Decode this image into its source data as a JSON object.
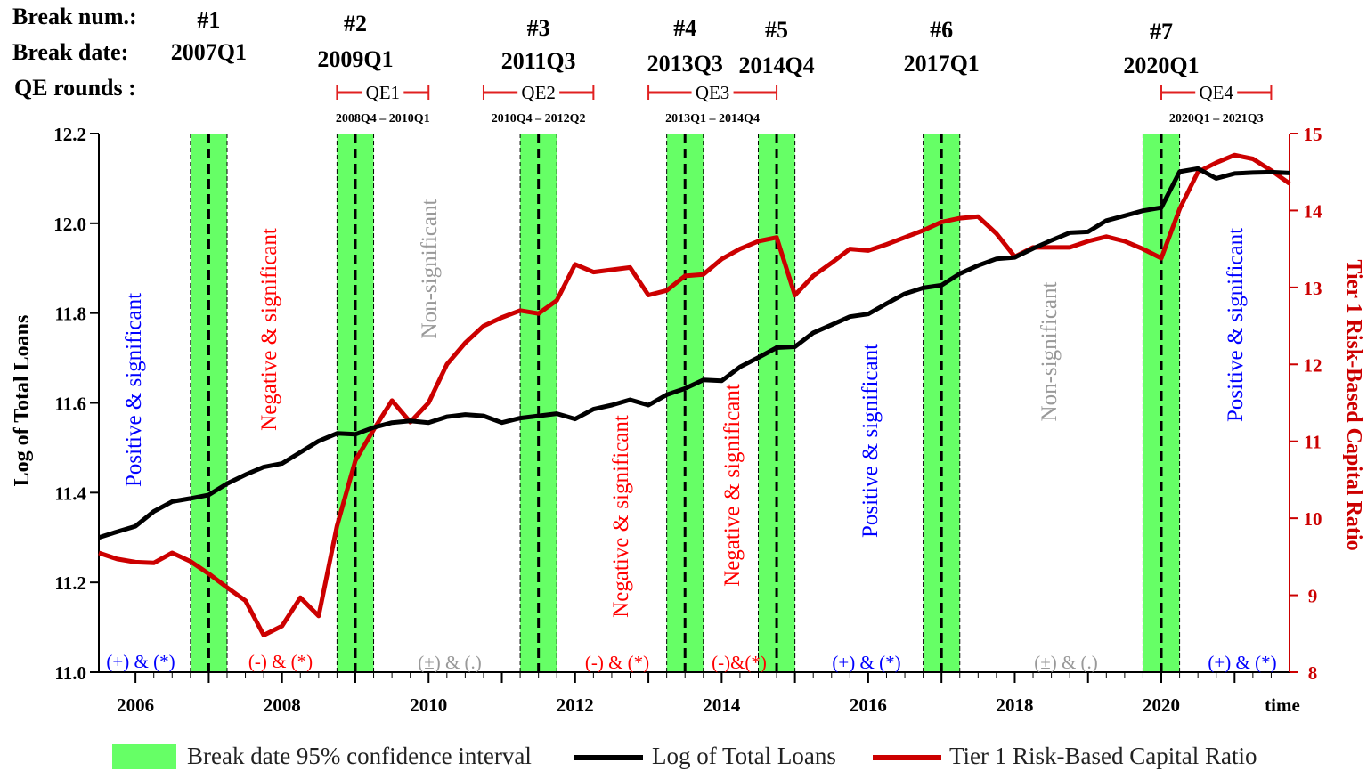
{
  "header": {
    "break_num_label": "Break num.:",
    "break_date_label": "Break date:",
    "qe_label": "QE rounds :"
  },
  "breaks": [
    {
      "num": "#1",
      "date": "2007Q1",
      "t": 2007.0
    },
    {
      "num": "#2",
      "date": "2009Q1",
      "t": 2009.0
    },
    {
      "num": "#3",
      "date": "2011Q3",
      "t": 2011.5
    },
    {
      "num": "#4",
      "date": "2013Q3",
      "t": 2013.5
    },
    {
      "num": "#5",
      "date": "2014Q4",
      "t": 2014.75
    },
    {
      "num": "#6",
      "date": "2017Q1",
      "t": 2017.0
    },
    {
      "num": "#7",
      "date": "2020Q1",
      "t": 2020.0
    }
  ],
  "qe_rounds": [
    {
      "label": "QE1",
      "range": "2008Q4 – 2010Q1",
      "start": 2008.75,
      "end": 2010.0
    },
    {
      "label": "QE2",
      "range": "2010Q4 – 2012Q2",
      "start": 2010.75,
      "end": 2012.25
    },
    {
      "label": "QE3",
      "range": "2013Q1 – 2014Q4",
      "start": 2013.0,
      "end": 2014.75
    },
    {
      "label": "QE4",
      "range": "2020Q1 – 2021Q3",
      "start": 2020.0,
      "end": 2021.5
    }
  ],
  "regimes": [
    {
      "label": "Positive & significant",
      "sig": "(+) & (*)",
      "color": "#0000ff",
      "sig_color": "#0000ff"
    },
    {
      "label": "Negative & significant",
      "sig": "(-) & (*)",
      "color": "#ff0000",
      "sig_color": "#ff0000"
    },
    {
      "label": "Non-significant",
      "sig": "(±) & (.)",
      "color": "#999999",
      "sig_color": "#999999"
    },
    {
      "label": "Negative & significant",
      "sig": "(-) & (*)",
      "color": "#ff0000",
      "sig_color": "#ff0000"
    },
    {
      "label": "Negative & significant",
      "sig": "(-)&(*)",
      "color": "#ff0000",
      "sig_color": "#ff0000"
    },
    {
      "label": "Positive & significant",
      "sig": "(+) & (*)",
      "color": "#0000ff",
      "sig_color": "#0000ff"
    },
    {
      "label": "Non-significant",
      "sig": "(±) & (.)",
      "color": "#999999",
      "sig_color": "#999999"
    },
    {
      "label": "Positive & significant",
      "sig": "(+) & (*)",
      "color": "#0000ff",
      "sig_color": "#0000ff"
    }
  ],
  "legend": [
    {
      "label": "Break date 95% confidence interval",
      "color": "#66ff66",
      "kind": "box"
    },
    {
      "label": "Log of Total Loans",
      "color": "#000000",
      "kind": "line"
    },
    {
      "label": "Tier 1 Risk-Based Capital Ratio",
      "color": "#cc0000",
      "kind": "line"
    }
  ],
  "colors": {
    "ci_fill": "#66ff66",
    "loans": "#000000",
    "tier1": "#cc0000"
  },
  "chart_data": {
    "type": "line",
    "xlabel": "time",
    "ylabel_left": "Log of Total Loans",
    "ylabel_right": "Tier 1 Risk-Based Capital Ratio",
    "xlim": [
      2005.5,
      2021.75
    ],
    "ylim_left": [
      11.0,
      12.2
    ],
    "ylim_right": [
      8,
      15
    ],
    "x_ticks": [
      2006,
      2008,
      2010,
      2012,
      2014,
      2016,
      2018,
      2020
    ],
    "y_ticks_left": [
      "11.0",
      "11.2",
      "11.4",
      "11.6",
      "11.8",
      "12.0",
      "12.2"
    ],
    "y_ticks_right": [
      "8",
      "9",
      "10",
      "11",
      "12",
      "13",
      "14",
      "15"
    ],
    "ci_intervals": [
      [
        2006.75,
        2007.25
      ],
      [
        2008.75,
        2009.25
      ],
      [
        2011.25,
        2011.75
      ],
      [
        2013.25,
        2013.75
      ],
      [
        2014.5,
        2015.0
      ],
      [
        2016.75,
        2017.25
      ],
      [
        2019.75,
        2020.25
      ]
    ],
    "series": [
      {
        "name": "Log of Total Loans",
        "x": [
          2005.5,
          2005.75,
          2006.0,
          2006.25,
          2006.5,
          2006.75,
          2007.0,
          2007.25,
          2007.5,
          2007.75,
          2008.0,
          2008.25,
          2008.5,
          2008.75,
          2009.0,
          2009.25,
          2009.5,
          2009.75,
          2010.0,
          2010.25,
          2010.5,
          2010.75,
          2011.0,
          2011.25,
          2011.5,
          2011.75,
          2012.0,
          2012.25,
          2012.5,
          2012.75,
          2013.0,
          2013.25,
          2013.5,
          2013.75,
          2014.0,
          2014.25,
          2014.5,
          2014.75,
          2015.0,
          2015.25,
          2015.5,
          2015.75,
          2016.0,
          2016.25,
          2016.5,
          2016.75,
          2017.0,
          2017.25,
          2017.5,
          2017.75,
          2018.0,
          2018.25,
          2018.5,
          2018.75,
          2019.0,
          2019.25,
          2019.5,
          2019.75,
          2020.0,
          2020.25,
          2020.5,
          2020.75,
          2021.0,
          2021.25,
          2021.5,
          2021.75
        ],
        "y": [
          11.3,
          11.313,
          11.325,
          11.358,
          11.38,
          11.387,
          11.395,
          11.42,
          11.44,
          11.457,
          11.465,
          11.49,
          11.515,
          11.532,
          11.53,
          11.545,
          11.556,
          11.56,
          11.556,
          11.569,
          11.574,
          11.571,
          11.556,
          11.566,
          11.571,
          11.576,
          11.564,
          11.586,
          11.595,
          11.607,
          11.595,
          11.618,
          11.632,
          11.651,
          11.649,
          11.68,
          11.701,
          11.723,
          11.725,
          11.756,
          11.774,
          11.792,
          11.798,
          11.821,
          11.843,
          11.856,
          11.862,
          11.888,
          11.906,
          11.921,
          11.924,
          11.944,
          11.962,
          11.979,
          11.981,
          12.006,
          12.017,
          12.028,
          12.035,
          12.115,
          12.122,
          12.1,
          12.111,
          12.113,
          12.114,
          12.112
        ]
      },
      {
        "name": "Tier 1 Risk-Based Capital Ratio",
        "x": [
          2005.5,
          2005.75,
          2006.0,
          2006.25,
          2006.5,
          2006.75,
          2007.0,
          2007.25,
          2007.5,
          2007.75,
          2008.0,
          2008.25,
          2008.5,
          2008.75,
          2009.0,
          2009.25,
          2009.5,
          2009.75,
          2010.0,
          2010.25,
          2010.5,
          2010.75,
          2011.0,
          2011.25,
          2011.5,
          2011.75,
          2012.0,
          2012.25,
          2012.5,
          2012.75,
          2013.0,
          2013.25,
          2013.5,
          2013.75,
          2014.0,
          2014.25,
          2014.5,
          2014.75,
          2015.0,
          2015.25,
          2015.5,
          2015.75,
          2016.0,
          2016.25,
          2016.5,
          2016.75,
          2017.0,
          2017.25,
          2017.5,
          2017.75,
          2018.0,
          2018.25,
          2018.5,
          2018.75,
          2019.0,
          2019.25,
          2019.5,
          2019.75,
          2020.0,
          2020.25,
          2020.5,
          2020.75,
          2021.0,
          2021.25,
          2021.5,
          2021.75
        ],
        "y": [
          9.55,
          9.47,
          9.43,
          9.42,
          9.55,
          9.44,
          9.28,
          9.1,
          8.93,
          8.48,
          8.6,
          8.97,
          8.73,
          9.9,
          10.75,
          11.15,
          11.53,
          11.25,
          11.5,
          12.0,
          12.28,
          12.5,
          12.61,
          12.7,
          12.66,
          12.83,
          13.3,
          13.2,
          13.23,
          13.26,
          12.9,
          12.96,
          13.15,
          13.17,
          13.37,
          13.5,
          13.6,
          13.65,
          12.9,
          13.15,
          13.32,
          13.5,
          13.48,
          13.56,
          13.65,
          13.74,
          13.85,
          13.9,
          13.92,
          13.7,
          13.4,
          13.52,
          13.52,
          13.52,
          13.6,
          13.66,
          13.6,
          13.5,
          13.38,
          14.02,
          14.5,
          14.62,
          14.72,
          14.67,
          14.52,
          14.35
        ]
      }
    ]
  }
}
